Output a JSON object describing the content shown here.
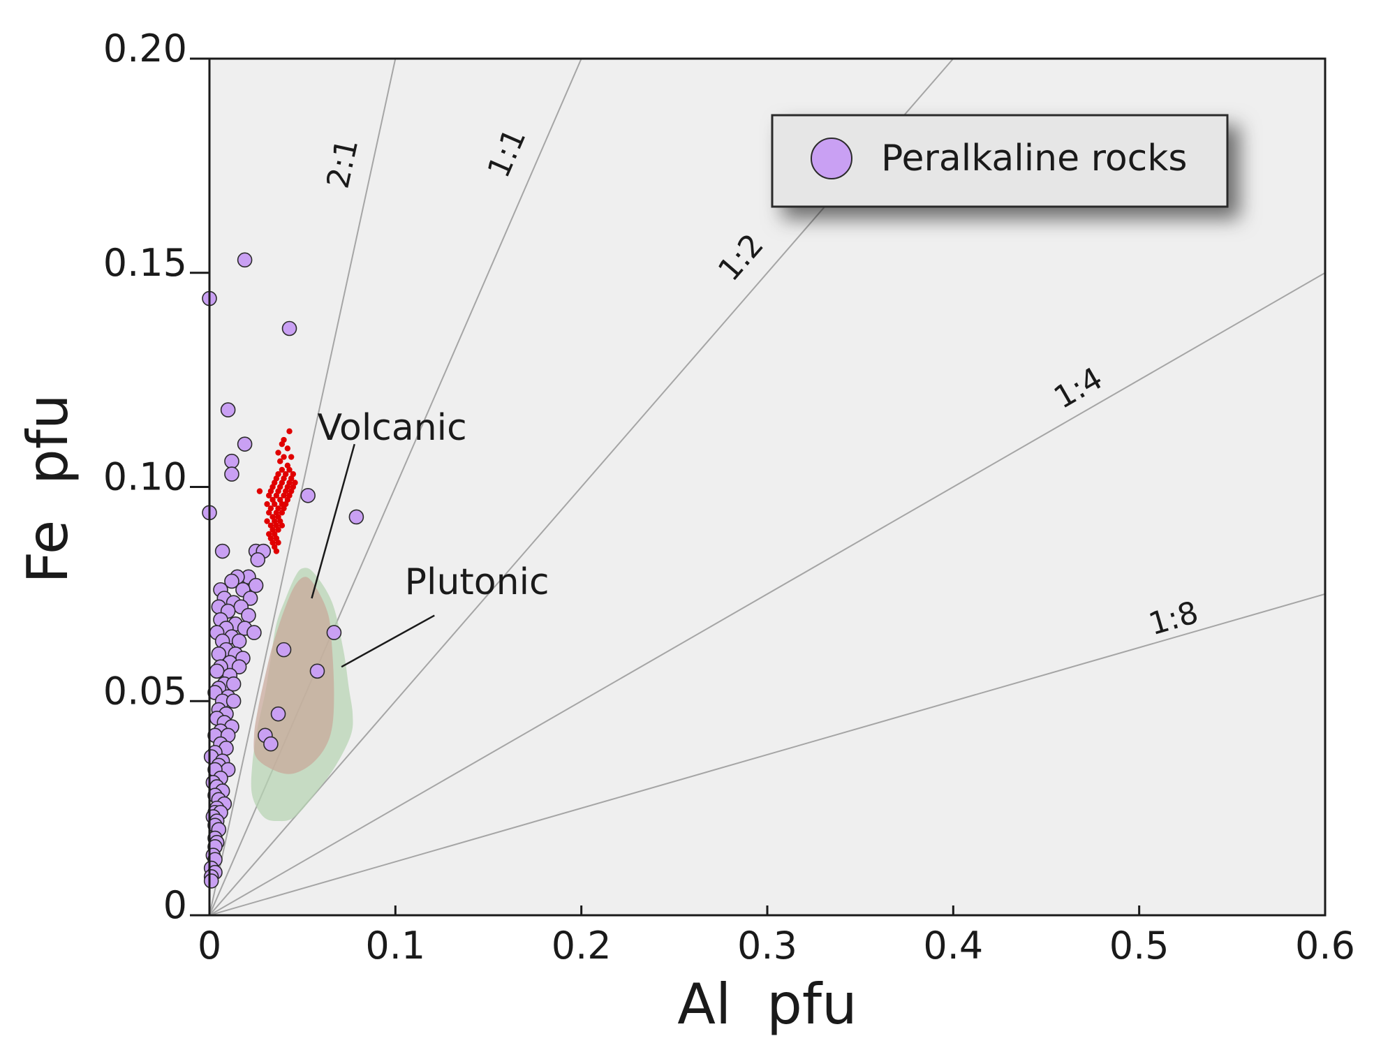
{
  "chart_data": {
    "type": "scatter",
    "title": "",
    "xlabel": "Al  pfu",
    "ylabel": "Fe  pfu",
    "xlim": [
      0,
      0.6
    ],
    "ylim": [
      0,
      0.2
    ],
    "grid": false,
    "xticks": [
      {
        "value": 0,
        "label": "0"
      },
      {
        "value": 0.1,
        "label": "0.1"
      },
      {
        "value": 0.2,
        "label": "0.2"
      },
      {
        "value": 0.3,
        "label": "0.3"
      },
      {
        "value": 0.4,
        "label": "0.4"
      },
      {
        "value": 0.5,
        "label": "0.5"
      },
      {
        "value": 0.6,
        "label": "0.6"
      }
    ],
    "yticks": [
      {
        "value": 0,
        "label": "0"
      },
      {
        "value": 0.05,
        "label": "0.05"
      },
      {
        "value": 0.1,
        "label": "0.10"
      },
      {
        "value": 0.15,
        "label": "0.15"
      },
      {
        "value": 0.2,
        "label": "0.20"
      }
    ],
    "ratio_lines": [
      {
        "label": "2:1",
        "slope": 2,
        "label_at": [
          0.077,
          0.175
        ]
      },
      {
        "label": "1:1",
        "slope": 1,
        "label_at": [
          0.165,
          0.177
        ]
      },
      {
        "label": "1:2",
        "slope": 0.5,
        "label_at": [
          0.29,
          0.152
        ]
      },
      {
        "label": "1:4",
        "slope": 0.25,
        "label_at": [
          0.47,
          0.121
        ]
      },
      {
        "label": "1:8",
        "slope": 0.125,
        "label_at": [
          0.52,
          0.067
        ]
      }
    ],
    "legend": {
      "position": "top-right",
      "entries": [
        {
          "name": "Peralkaline rocks",
          "color": "#c9a0f3"
        }
      ]
    },
    "series": [
      {
        "name": "Peralkaline rocks",
        "marker": "circle",
        "color": "#c9a0f3",
        "edge_color": "#2a2a2a",
        "points": [
          [
            0.019,
            0.153
          ],
          [
            0.0,
            0.144
          ],
          [
            0.043,
            0.137
          ],
          [
            0.01,
            0.118
          ],
          [
            0.019,
            0.11
          ],
          [
            0.012,
            0.106
          ],
          [
            0.012,
            0.103
          ],
          [
            0.053,
            0.098
          ],
          [
            0.079,
            0.093
          ],
          [
            0.0,
            0.094
          ],
          [
            0.007,
            0.085
          ],
          [
            0.025,
            0.085
          ],
          [
            0.029,
            0.085
          ],
          [
            0.026,
            0.083
          ],
          [
            0.021,
            0.079
          ],
          [
            0.015,
            0.079
          ],
          [
            0.012,
            0.078
          ],
          [
            0.025,
            0.077
          ],
          [
            0.006,
            0.076
          ],
          [
            0.018,
            0.076
          ],
          [
            0.008,
            0.074
          ],
          [
            0.022,
            0.074
          ],
          [
            0.013,
            0.073
          ],
          [
            0.017,
            0.072
          ],
          [
            0.005,
            0.072
          ],
          [
            0.01,
            0.071
          ],
          [
            0.021,
            0.07
          ],
          [
            0.006,
            0.069
          ],
          [
            0.014,
            0.068
          ],
          [
            0.019,
            0.067
          ],
          [
            0.009,
            0.067
          ],
          [
            0.004,
            0.066
          ],
          [
            0.024,
            0.066
          ],
          [
            0.012,
            0.065
          ],
          [
            0.007,
            0.064
          ],
          [
            0.016,
            0.064
          ],
          [
            0.009,
            0.062
          ],
          [
            0.005,
            0.061
          ],
          [
            0.014,
            0.061
          ],
          [
            0.018,
            0.06
          ],
          [
            0.011,
            0.059
          ],
          [
            0.006,
            0.058
          ],
          [
            0.016,
            0.058
          ],
          [
            0.004,
            0.057
          ],
          [
            0.011,
            0.056
          ],
          [
            0.008,
            0.054
          ],
          [
            0.013,
            0.054
          ],
          [
            0.005,
            0.053
          ],
          [
            0.003,
            0.052
          ],
          [
            0.01,
            0.051
          ],
          [
            0.007,
            0.05
          ],
          [
            0.013,
            0.05
          ],
          [
            0.005,
            0.048
          ],
          [
            0.009,
            0.047
          ],
          [
            0.004,
            0.046
          ],
          [
            0.008,
            0.045
          ],
          [
            0.012,
            0.044
          ],
          [
            0.006,
            0.043
          ],
          [
            0.003,
            0.042
          ],
          [
            0.01,
            0.042
          ],
          [
            0.006,
            0.04
          ],
          [
            0.009,
            0.039
          ],
          [
            0.003,
            0.038
          ],
          [
            0.001,
            0.037
          ],
          [
            0.007,
            0.036
          ],
          [
            0.005,
            0.035
          ],
          [
            0.01,
            0.034
          ],
          [
            0.003,
            0.034
          ],
          [
            0.006,
            0.032
          ],
          [
            0.002,
            0.031
          ],
          [
            0.004,
            0.03
          ],
          [
            0.007,
            0.029
          ],
          [
            0.003,
            0.028
          ],
          [
            0.005,
            0.027
          ],
          [
            0.008,
            0.026
          ],
          [
            0.004,
            0.025
          ],
          [
            0.003,
            0.024
          ],
          [
            0.006,
            0.024
          ],
          [
            0.002,
            0.023
          ],
          [
            0.004,
            0.022
          ],
          [
            0.003,
            0.021
          ],
          [
            0.005,
            0.02
          ],
          [
            0.003,
            0.018
          ],
          [
            0.004,
            0.017
          ],
          [
            0.003,
            0.016
          ],
          [
            0.002,
            0.014
          ],
          [
            0.003,
            0.013
          ],
          [
            0.001,
            0.011
          ],
          [
            0.003,
            0.01
          ],
          [
            0.001,
            0.009
          ],
          [
            0.001,
            0.008
          ],
          [
            0.04,
            0.062
          ],
          [
            0.067,
            0.066
          ],
          [
            0.058,
            0.057
          ],
          [
            0.037,
            0.047
          ],
          [
            0.03,
            0.042
          ],
          [
            0.033,
            0.04
          ]
        ]
      },
      {
        "name": "red data",
        "marker": "dot",
        "color": "#e00000",
        "points": [
          [
            0.043,
            0.113
          ],
          [
            0.04,
            0.111
          ],
          [
            0.039,
            0.11
          ],
          [
            0.042,
            0.109
          ],
          [
            0.037,
            0.108
          ],
          [
            0.04,
            0.107
          ],
          [
            0.044,
            0.107
          ],
          [
            0.038,
            0.106
          ],
          [
            0.042,
            0.105
          ],
          [
            0.039,
            0.104
          ],
          [
            0.043,
            0.104
          ],
          [
            0.037,
            0.103
          ],
          [
            0.041,
            0.103
          ],
          [
            0.045,
            0.103
          ],
          [
            0.036,
            0.102
          ],
          [
            0.04,
            0.102
          ],
          [
            0.044,
            0.102
          ],
          [
            0.035,
            0.101
          ],
          [
            0.039,
            0.101
          ],
          [
            0.043,
            0.101
          ],
          [
            0.046,
            0.101
          ],
          [
            0.034,
            0.1
          ],
          [
            0.038,
            0.1
          ],
          [
            0.042,
            0.1
          ],
          [
            0.045,
            0.1
          ],
          [
            0.027,
            0.099
          ],
          [
            0.033,
            0.099
          ],
          [
            0.037,
            0.099
          ],
          [
            0.041,
            0.099
          ],
          [
            0.044,
            0.099
          ],
          [
            0.032,
            0.098
          ],
          [
            0.036,
            0.098
          ],
          [
            0.04,
            0.098
          ],
          [
            0.043,
            0.098
          ],
          [
            0.034,
            0.097
          ],
          [
            0.038,
            0.097
          ],
          [
            0.042,
            0.097
          ],
          [
            0.031,
            0.096
          ],
          [
            0.035,
            0.096
          ],
          [
            0.039,
            0.096
          ],
          [
            0.041,
            0.096
          ],
          [
            0.033,
            0.095
          ],
          [
            0.037,
            0.095
          ],
          [
            0.04,
            0.095
          ],
          [
            0.032,
            0.094
          ],
          [
            0.036,
            0.094
          ],
          [
            0.039,
            0.094
          ],
          [
            0.034,
            0.093
          ],
          [
            0.037,
            0.093
          ],
          [
            0.031,
            0.092
          ],
          [
            0.035,
            0.092
          ],
          [
            0.038,
            0.092
          ],
          [
            0.033,
            0.091
          ],
          [
            0.036,
            0.091
          ],
          [
            0.039,
            0.091
          ],
          [
            0.034,
            0.09
          ],
          [
            0.037,
            0.09
          ],
          [
            0.032,
            0.089
          ],
          [
            0.035,
            0.089
          ],
          [
            0.033,
            0.088
          ],
          [
            0.036,
            0.088
          ],
          [
            0.034,
            0.087
          ],
          [
            0.037,
            0.087
          ],
          [
            0.035,
            0.086
          ],
          [
            0.036,
            0.085
          ]
        ]
      }
    ],
    "regions": [
      {
        "name": "Plutonic",
        "color": "#b5d3b2",
        "outline": [
          [
            0.05,
            0.081
          ],
          [
            0.056,
            0.08
          ],
          [
            0.066,
            0.073
          ],
          [
            0.072,
            0.062
          ],
          [
            0.075,
            0.053
          ],
          [
            0.077,
            0.047
          ],
          [
            0.076,
            0.042
          ],
          [
            0.068,
            0.035
          ],
          [
            0.058,
            0.029
          ],
          [
            0.046,
            0.023
          ],
          [
            0.037,
            0.022
          ],
          [
            0.029,
            0.023
          ],
          [
            0.023,
            0.028
          ],
          [
            0.023,
            0.035
          ],
          [
            0.026,
            0.044
          ],
          [
            0.03,
            0.052
          ],
          [
            0.033,
            0.06
          ],
          [
            0.036,
            0.068
          ],
          [
            0.041,
            0.074
          ],
          [
            0.046,
            0.079
          ]
        ]
      },
      {
        "name": "Volcanic",
        "color": "#c9a89a",
        "outline": [
          [
            0.052,
            0.079
          ],
          [
            0.058,
            0.076
          ],
          [
            0.064,
            0.07
          ],
          [
            0.066,
            0.062
          ],
          [
            0.067,
            0.052
          ],
          [
            0.066,
            0.044
          ],
          [
            0.062,
            0.039
          ],
          [
            0.054,
            0.035
          ],
          [
            0.044,
            0.033
          ],
          [
            0.034,
            0.034
          ],
          [
            0.025,
            0.037
          ],
          [
            0.024,
            0.042
          ],
          [
            0.026,
            0.048
          ],
          [
            0.03,
            0.056
          ],
          [
            0.034,
            0.063
          ],
          [
            0.04,
            0.071
          ],
          [
            0.046,
            0.077
          ]
        ]
      }
    ],
    "annotations": [
      {
        "text": "Volcanic",
        "at": [
          0.058,
          0.111
        ],
        "leader_from": [
          0.078,
          0.11
        ],
        "leader_to": [
          0.055,
          0.074
        ]
      },
      {
        "text": "Plutonic",
        "at": [
          0.105,
          0.075
        ],
        "leader_from": [
          0.121,
          0.07
        ],
        "leader_to": [
          0.071,
          0.058
        ]
      }
    ]
  }
}
